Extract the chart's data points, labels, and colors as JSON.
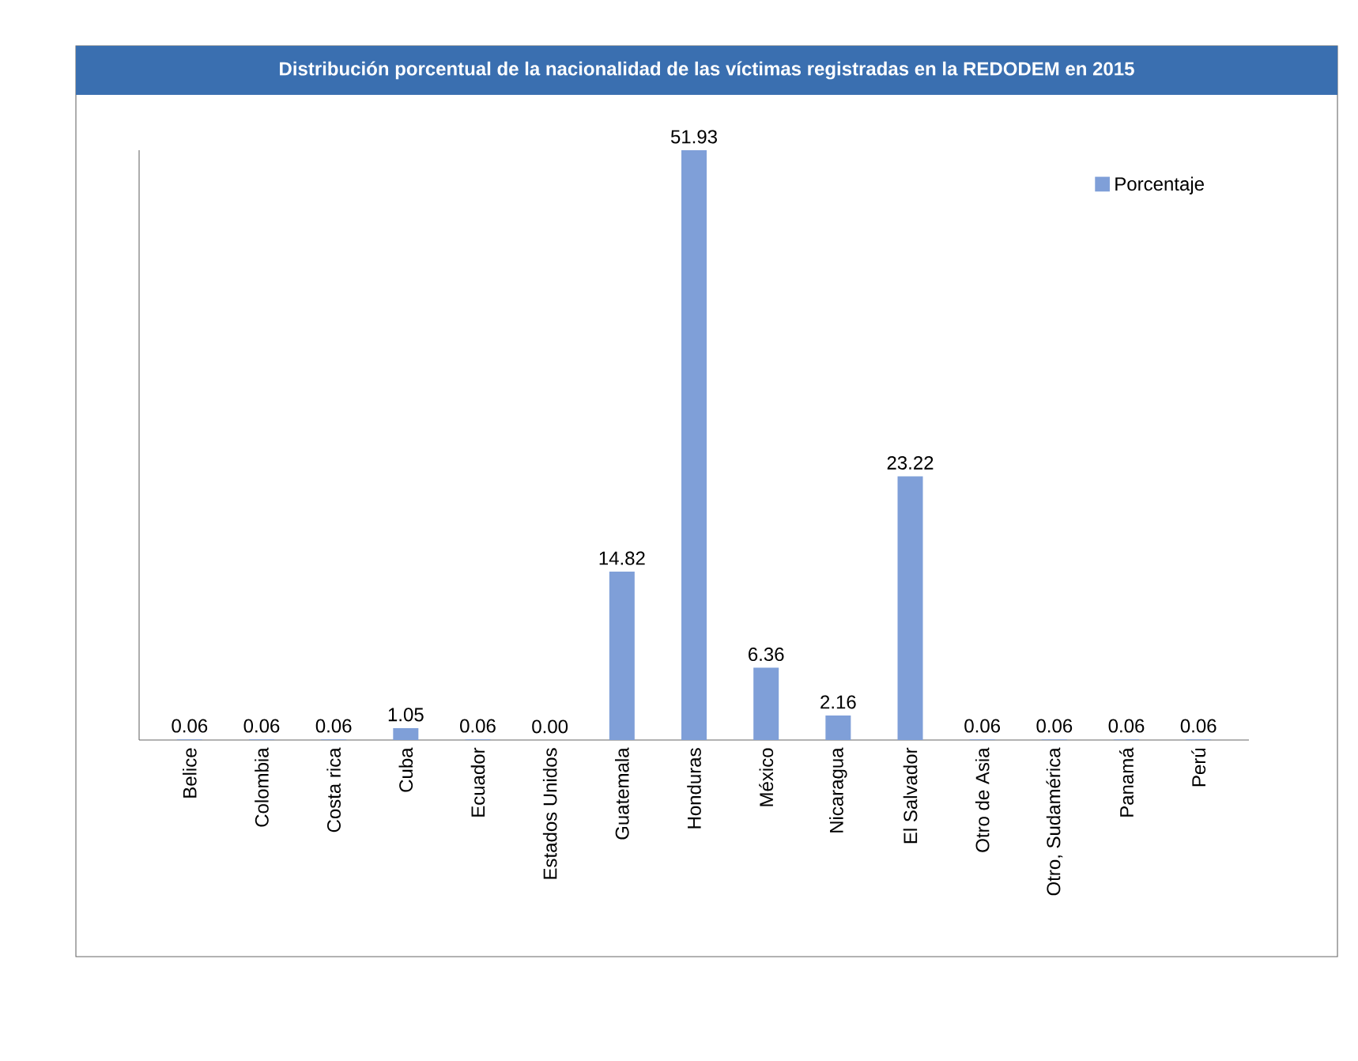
{
  "chart_data": {
    "type": "bar",
    "title": "Distribución porcentual de la nacionalidad de las víctimas registradas en la REDODEM en 2015",
    "categories": [
      "Belice",
      "Colombia",
      "Costa rica",
      "Cuba",
      "Ecuador",
      "Estados Unidos",
      "Guatemala",
      "Honduras",
      "México",
      "Nicaragua",
      "El Salvador",
      "Otro de Asia",
      "Otro, Sudamérica",
      "Panamá",
      "Perú"
    ],
    "series": [
      {
        "name": "Porcentaje",
        "color": "#7f9fd8",
        "values": [
          0.06,
          0.06,
          0.06,
          1.05,
          0.06,
          0.0,
          14.82,
          51.93,
          6.36,
          2.16,
          23.22,
          0.06,
          0.06,
          0.06,
          0.06
        ],
        "value_labels": [
          "0.06",
          "0.06",
          "0.06",
          "1.05",
          "0.06",
          "0.00",
          "14.82",
          "51.93",
          "6.36",
          "2.16",
          "23.22",
          "0.06",
          "0.06",
          "0.06",
          "0.06"
        ]
      }
    ],
    "legend": "top right"
  }
}
